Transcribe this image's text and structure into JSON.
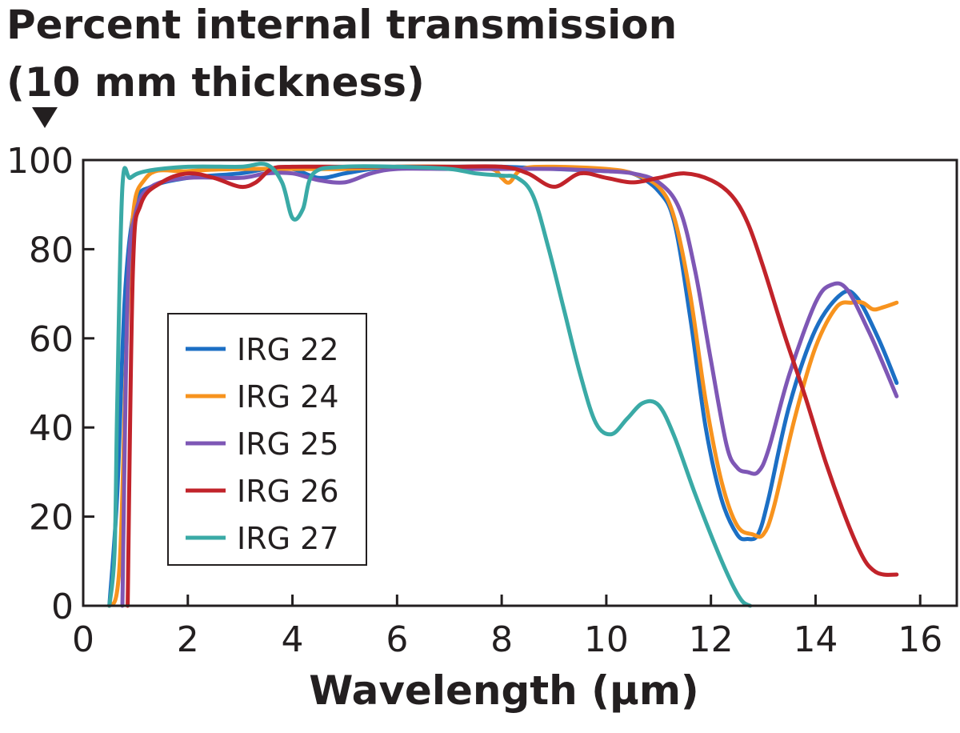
{
  "chart_data": {
    "type": "line",
    "title_lines": [
      "Percent internal transmission",
      "(10 mm thickness)"
    ],
    "xlabel": "Wavelength (µm)",
    "ylabel": "",
    "xlim": [
      0,
      16.7
    ],
    "ylim": [
      0,
      100
    ],
    "xticks": [
      0,
      2,
      4,
      6,
      8,
      10,
      12,
      14,
      16
    ],
    "yticks": [
      0,
      20,
      40,
      60,
      80,
      100
    ],
    "grid": false,
    "legend_position": "center-left",
    "series": [
      {
        "name": "IRG 22",
        "color": "#1c6fc4",
        "points": [
          [
            0.5,
            0
          ],
          [
            0.65,
            25
          ],
          [
            0.8,
            70
          ],
          [
            1.0,
            90
          ],
          [
            1.3,
            94
          ],
          [
            2,
            96
          ],
          [
            3,
            97
          ],
          [
            3.5,
            98
          ],
          [
            4,
            98
          ],
          [
            4.5,
            96
          ],
          [
            5,
            97
          ],
          [
            5.5,
            98
          ],
          [
            6,
            98.5
          ],
          [
            7,
            98.5
          ],
          [
            8,
            98.5
          ],
          [
            9,
            98
          ],
          [
            10,
            97.5
          ],
          [
            10.5,
            97
          ],
          [
            11,
            93
          ],
          [
            11.3,
            86
          ],
          [
            11.6,
            65
          ],
          [
            11.9,
            40
          ],
          [
            12.2,
            24
          ],
          [
            12.5,
            16
          ],
          [
            12.7,
            15
          ],
          [
            12.9,
            16
          ],
          [
            13.1,
            24
          ],
          [
            13.5,
            45
          ],
          [
            14,
            62
          ],
          [
            14.5,
            70
          ],
          [
            14.8,
            69
          ],
          [
            15.2,
            60
          ],
          [
            15.55,
            50
          ]
        ]
      },
      {
        "name": "IRG 24",
        "color": "#f7931e",
        "points": [
          [
            0.5,
            0
          ],
          [
            0.7,
            10
          ],
          [
            0.9,
            80
          ],
          [
            1.2,
            96
          ],
          [
            2,
            97.5
          ],
          [
            3,
            98
          ],
          [
            4,
            98
          ],
          [
            5,
            98
          ],
          [
            6,
            98.5
          ],
          [
            7,
            98.5
          ],
          [
            7.8,
            98
          ],
          [
            8,
            96
          ],
          [
            8.15,
            95
          ],
          [
            8.4,
            98
          ],
          [
            9,
            98.5
          ],
          [
            10,
            98
          ],
          [
            10.5,
            97
          ],
          [
            11,
            94
          ],
          [
            11.3,
            87
          ],
          [
            11.6,
            70
          ],
          [
            11.9,
            46
          ],
          [
            12.2,
            28
          ],
          [
            12.5,
            18
          ],
          [
            12.8,
            16
          ],
          [
            13.0,
            16
          ],
          [
            13.2,
            22
          ],
          [
            13.6,
            42
          ],
          [
            14,
            58
          ],
          [
            14.4,
            67
          ],
          [
            14.7,
            68
          ],
          [
            14.9,
            68
          ],
          [
            15.1,
            66.5
          ],
          [
            15.3,
            67
          ],
          [
            15.55,
            68
          ]
        ]
      },
      {
        "name": "IRG 25",
        "color": "#7e57b5",
        "points": [
          [
            0.75,
            0
          ],
          [
            0.85,
            70
          ],
          [
            1.0,
            88
          ],
          [
            1.3,
            94
          ],
          [
            2,
            96
          ],
          [
            3,
            96
          ],
          [
            3.5,
            97
          ],
          [
            4,
            97
          ],
          [
            4.5,
            95.5
          ],
          [
            5,
            95
          ],
          [
            5.5,
            97
          ],
          [
            6,
            98
          ],
          [
            7,
            98
          ],
          [
            8,
            98
          ],
          [
            9,
            98
          ],
          [
            10,
            97.5
          ],
          [
            10.5,
            97
          ],
          [
            11,
            95
          ],
          [
            11.4,
            89
          ],
          [
            11.7,
            75
          ],
          [
            12.0,
            55
          ],
          [
            12.3,
            36
          ],
          [
            12.5,
            31
          ],
          [
            12.7,
            30
          ],
          [
            12.9,
            30
          ],
          [
            13.1,
            35
          ],
          [
            13.5,
            52
          ],
          [
            14,
            68
          ],
          [
            14.3,
            72
          ],
          [
            14.6,
            71
          ],
          [
            15.0,
            62
          ],
          [
            15.3,
            54
          ],
          [
            15.55,
            47
          ]
        ]
      },
      {
        "name": "IRG 26",
        "color": "#c1232a",
        "points": [
          [
            0.85,
            0
          ],
          [
            0.95,
            75
          ],
          [
            1.1,
            90
          ],
          [
            1.5,
            95
          ],
          [
            2,
            97
          ],
          [
            2.5,
            96
          ],
          [
            3,
            94
          ],
          [
            3.3,
            95
          ],
          [
            3.6,
            98
          ],
          [
            4,
            98.5
          ],
          [
            5,
            98.5
          ],
          [
            6,
            98.5
          ],
          [
            7,
            98.5
          ],
          [
            8,
            98.5
          ],
          [
            8.5,
            97
          ],
          [
            9,
            94
          ],
          [
            9.5,
            97
          ],
          [
            10,
            96
          ],
          [
            10.5,
            95
          ],
          [
            11,
            96
          ],
          [
            11.5,
            97
          ],
          [
            12,
            95.5
          ],
          [
            12.4,
            92
          ],
          [
            12.7,
            86
          ],
          [
            13.0,
            76
          ],
          [
            13.4,
            61
          ],
          [
            13.8,
            47
          ],
          [
            14.2,
            32
          ],
          [
            14.6,
            19
          ],
          [
            14.9,
            11
          ],
          [
            15.1,
            8
          ],
          [
            15.3,
            7
          ],
          [
            15.55,
            7
          ]
        ]
      },
      {
        "name": "IRG 27",
        "color": "#3aaaa6",
        "points": [
          [
            0.5,
            0
          ],
          [
            0.6,
            12
          ],
          [
            0.65,
            45
          ],
          [
            0.75,
            94
          ],
          [
            0.9,
            96
          ],
          [
            1.2,
            97.5
          ],
          [
            2,
            98.5
          ],
          [
            3,
            98.5
          ],
          [
            3.5,
            99
          ],
          [
            3.8,
            95
          ],
          [
            4.0,
            87
          ],
          [
            4.2,
            89
          ],
          [
            4.4,
            97
          ],
          [
            5,
            98.5
          ],
          [
            6,
            98.5
          ],
          [
            7,
            98
          ],
          [
            7.5,
            97
          ],
          [
            8,
            96.5
          ],
          [
            8.3,
            96
          ],
          [
            8.6,
            92
          ],
          [
            8.9,
            80
          ],
          [
            9.2,
            66
          ],
          [
            9.5,
            52
          ],
          [
            9.8,
            41
          ],
          [
            10.1,
            38.5
          ],
          [
            10.4,
            42
          ],
          [
            10.7,
            45.5
          ],
          [
            11.0,
            45
          ],
          [
            11.3,
            38
          ],
          [
            11.7,
            25
          ],
          [
            12.1,
            13
          ],
          [
            12.4,
            5
          ],
          [
            12.6,
            1
          ],
          [
            12.75,
            0
          ]
        ]
      }
    ]
  }
}
